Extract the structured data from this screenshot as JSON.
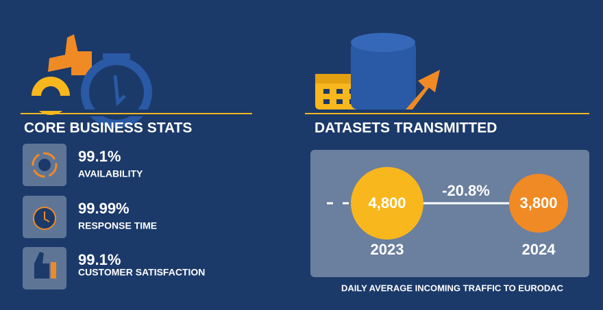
{
  "left": {
    "title": "CORE BUSINESS STATS",
    "stats": [
      {
        "value": "99.1%",
        "label": "AVAILABILITY"
      },
      {
        "value": "99.99%",
        "label": "RESPONSE TIME"
      },
      {
        "value": "99.1%",
        "label": "CUSTOMER SATISFACTION"
      }
    ]
  },
  "right": {
    "title": "DATASETS TRANSMITTED",
    "items": [
      {
        "year": "2023",
        "value": "4,800"
      },
      {
        "year": "2024",
        "value": "3,800"
      }
    ],
    "change": "-20.8%",
    "caption": "DAILY AVERAGE INCOMING TRAFFIC TO EURODAC"
  }
}
